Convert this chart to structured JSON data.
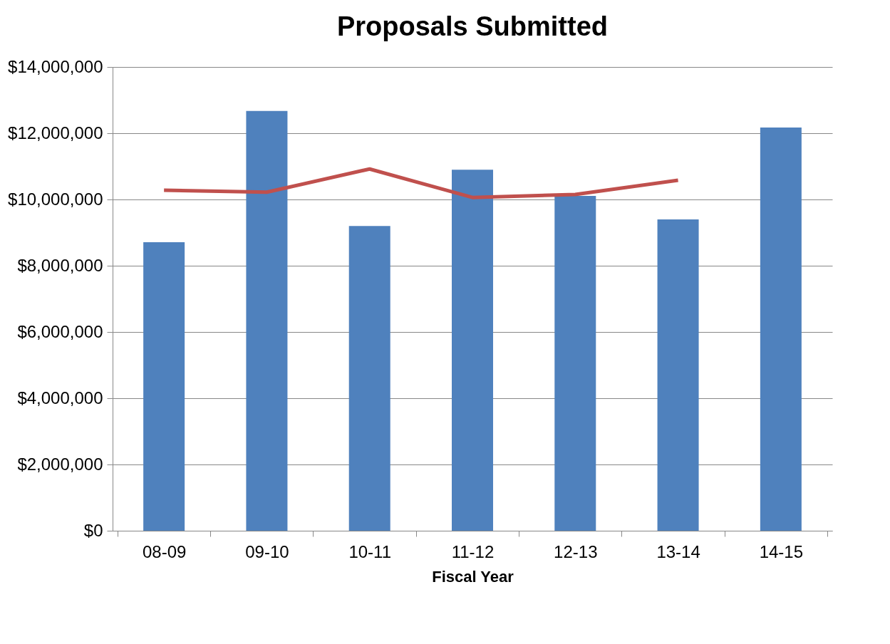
{
  "chart_data": {
    "type": "bar",
    "title": "Proposals Submitted",
    "xlabel": "Fiscal Year",
    "categories": [
      "08-09",
      "09-10",
      "10-11",
      "11-12",
      "12-13",
      "13-14",
      "14-15"
    ],
    "series": [
      {
        "color": "#4f81bd",
        "values": [
          8710000,
          12670000,
          9200000,
          10900000,
          10110000,
          9400000,
          12170000
        ]
      },
      {
        "type": "line",
        "color": "#c0504d",
        "values": [
          10280000,
          10220000,
          10920000,
          10060000,
          10150000,
          10580000,
          null
        ]
      }
    ],
    "ylim": [
      0,
      14000000
    ],
    "yticks": [
      {
        "value": 0,
        "label": "$0"
      },
      {
        "value": 2000000,
        "label": "$2,000,000"
      },
      {
        "value": 4000000,
        "label": "$4,000,000"
      },
      {
        "value": 6000000,
        "label": "$6,000,000"
      },
      {
        "value": 8000000,
        "label": "$8,000,000"
      },
      {
        "value": 10000000,
        "label": "$10,000,000"
      },
      {
        "value": 12000000,
        "label": "$12,000,000"
      },
      {
        "value": 14000000,
        "label": "$14,000,000"
      }
    ],
    "grid": "y"
  }
}
